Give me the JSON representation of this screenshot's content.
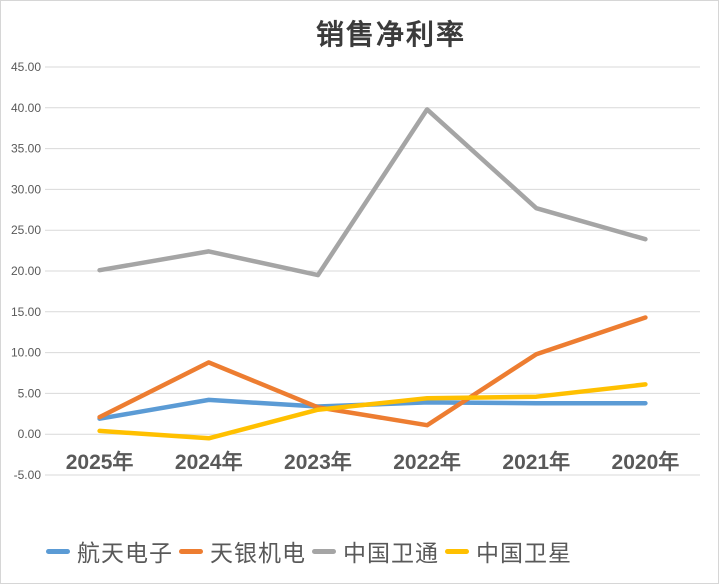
{
  "chart": {
    "title": "销售净利率"
  },
  "chart_data": {
    "type": "line",
    "title": "销售净利率",
    "categories": [
      "2025年",
      "2024年",
      "2023年",
      "2022年",
      "2021年",
      "2020年"
    ],
    "series": [
      {
        "name": "航天电子",
        "color": "#5B9BD5",
        "values": [
          1.9,
          4.2,
          3.4,
          3.9,
          3.8,
          3.8
        ]
      },
      {
        "name": "天银机电",
        "color": "#ED7D31",
        "values": [
          2.1,
          8.8,
          3.3,
          1.1,
          9.8,
          14.3
        ]
      },
      {
        "name": "中国卫通",
        "color": "#A5A5A5",
        "values": [
          20.1,
          22.4,
          19.5,
          39.8,
          27.7,
          23.9
        ]
      },
      {
        "name": "中国卫星",
        "color": "#FFC000",
        "values": [
          0.4,
          -0.5,
          3.0,
          4.4,
          4.6,
          6.1
        ]
      }
    ],
    "ylim": [
      -5,
      45
    ],
    "ytick_step": 5,
    "ytick_decimals": 2,
    "grid": "horizontal",
    "legend_position": "bottom",
    "gridline_color": "#D9D9D9",
    "y_label_color": "#595959",
    "x_label_color": "#595959"
  }
}
